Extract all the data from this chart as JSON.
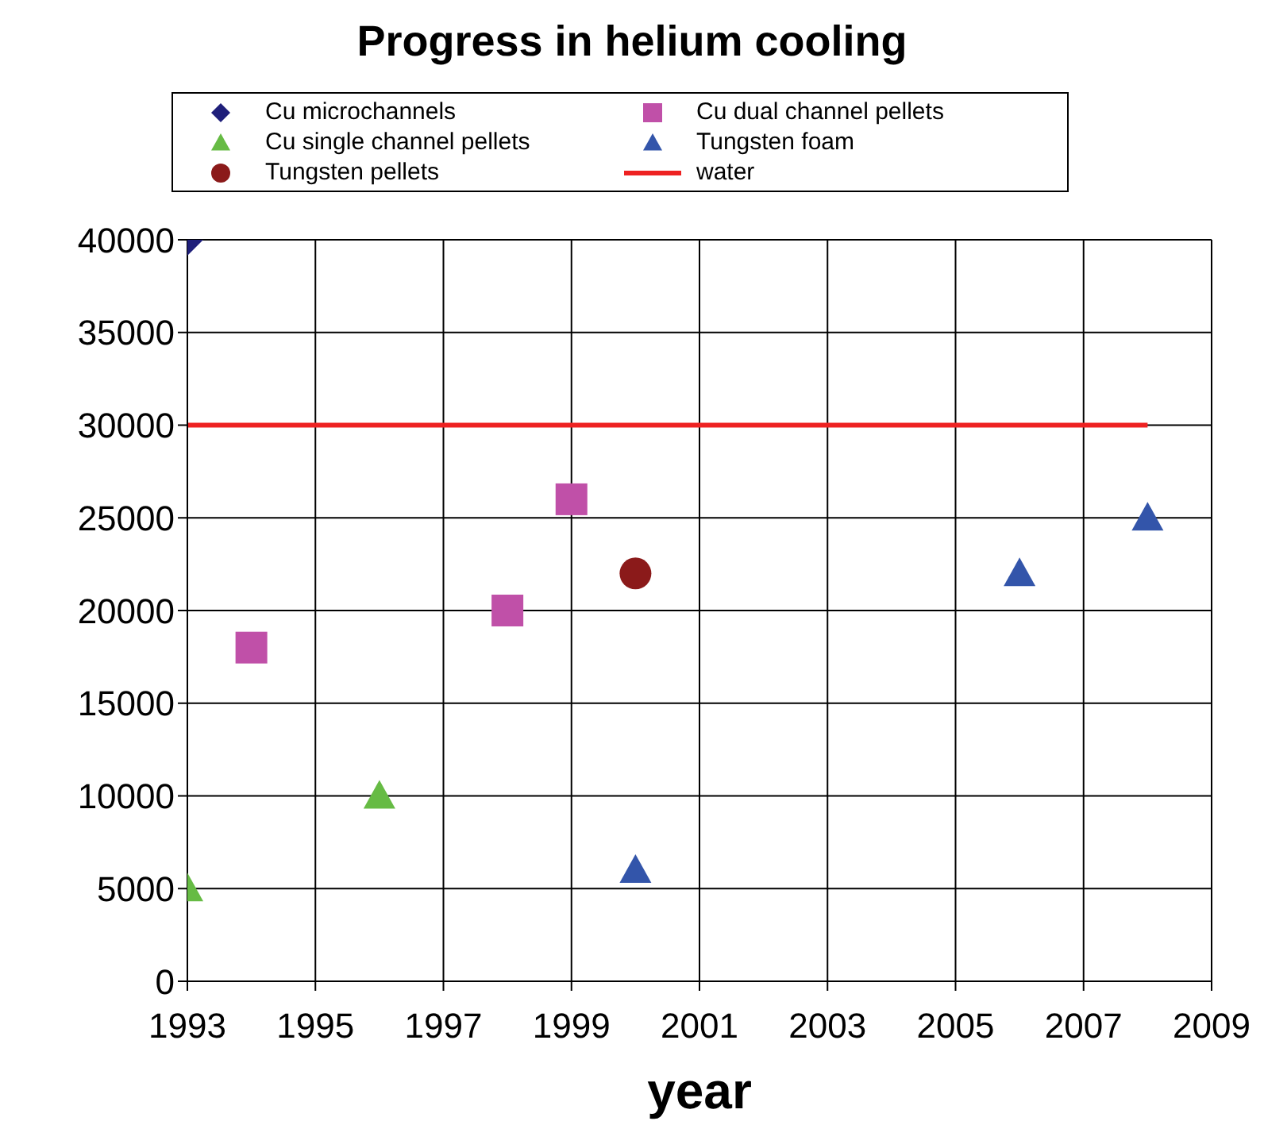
{
  "chart_data": {
    "type": "scatter",
    "title": "Progress in helium cooling",
    "xlabel": "year",
    "xlim": [
      1993,
      2009
    ],
    "xticks": [
      1993,
      1995,
      1997,
      1999,
      2001,
      2003,
      2005,
      2007,
      2009
    ],
    "ylim": [
      0,
      40000
    ],
    "yticks": [
      0,
      5000,
      10000,
      15000,
      20000,
      25000,
      30000,
      35000,
      40000
    ],
    "grid": true,
    "legend": "top",
    "series": [
      {
        "name": "Cu microchannels",
        "color": "#1f1f7a",
        "marker": "diamond",
        "x": [
          1993
        ],
        "values": [
          40000
        ]
      },
      {
        "name": "Cu dual channel pellets",
        "color": "#c050a8",
        "marker": "square",
        "x": [
          1994,
          1998,
          1999
        ],
        "values": [
          18000,
          20000,
          26000
        ]
      },
      {
        "name": "Cu single channel pellets",
        "color": "#66bb44",
        "marker": "triangle",
        "x": [
          1993,
          1996
        ],
        "values": [
          5000,
          10000
        ]
      },
      {
        "name": "Tungsten foam",
        "color": "#3355aa",
        "marker": "triangle",
        "x": [
          2000,
          2006,
          2008
        ],
        "values": [
          6000,
          22000,
          25000
        ]
      },
      {
        "name": "Tungsten pellets",
        "color": "#8b1a1a",
        "marker": "circle",
        "x": [
          2000
        ],
        "values": [
          22000
        ]
      },
      {
        "name": "water",
        "type": "line",
        "color": "#ee2222",
        "marker": "none",
        "x": [
          1993,
          2008
        ],
        "values": [
          30000,
          30000
        ]
      }
    ]
  }
}
